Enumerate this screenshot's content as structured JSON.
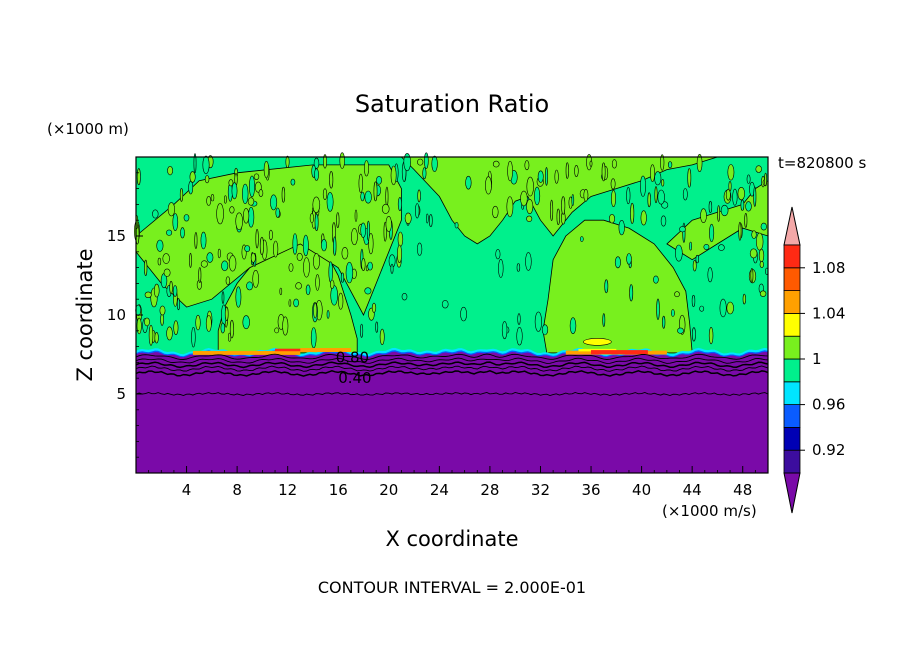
{
  "chart_data": {
    "type": "contour",
    "title": "Saturation Ratio",
    "xlabel": "X coordinate",
    "ylabel": "Z coordinate",
    "x_units": "(×1000 m/s)",
    "y_units": "(×1000 m)",
    "time_label": "t=820800 s",
    "footer": "CONTOUR INTERVAL = 2.000E-01",
    "x_range": [
      0,
      50
    ],
    "y_range": [
      0,
      20
    ],
    "x_ticks": [
      "4",
      "8",
      "12",
      "16",
      "20",
      "24",
      "28",
      "32",
      "36",
      "40",
      "44",
      "48"
    ],
    "y_ticks": [
      "5",
      "10",
      "15"
    ],
    "contour_labels": [
      {
        "text": "0.80",
        "x": 15.8,
        "z": 7.3
      },
      {
        "text": "0.40",
        "x": 16.0,
        "z": 6.0
      }
    ],
    "colorbar": {
      "labels": [
        "1.08",
        "1.04",
        "1",
        "0.96",
        "0.92"
      ],
      "levels": [
        0.9,
        0.92,
        0.94,
        0.96,
        0.98,
        1.0,
        1.02,
        1.04,
        1.06,
        1.08,
        1.1
      ],
      "colors": [
        "#3c0d9e",
        "#0000b4",
        "#0a5cff",
        "#00e5ff",
        "#00f08c",
        "#78f01e",
        "#ffff00",
        "#ffa000",
        "#ff5a00",
        "#ff2a14",
        "#f4a8a8"
      ],
      "under_color": "#7a0aa8",
      "over_color": "#f4a8a8"
    },
    "regions": {
      "dry_layer_top_km": 7.5,
      "dry_layer_value": "<0.90",
      "upper_background": "0.98-1.00",
      "supersaturated_patches": [
        {
          "x_range": [
            6,
            17
          ],
          "value": "1.00-1.02"
        },
        {
          "x_range": [
            32,
            44
          ],
          "value": "1.00-1.02"
        }
      ]
    }
  }
}
